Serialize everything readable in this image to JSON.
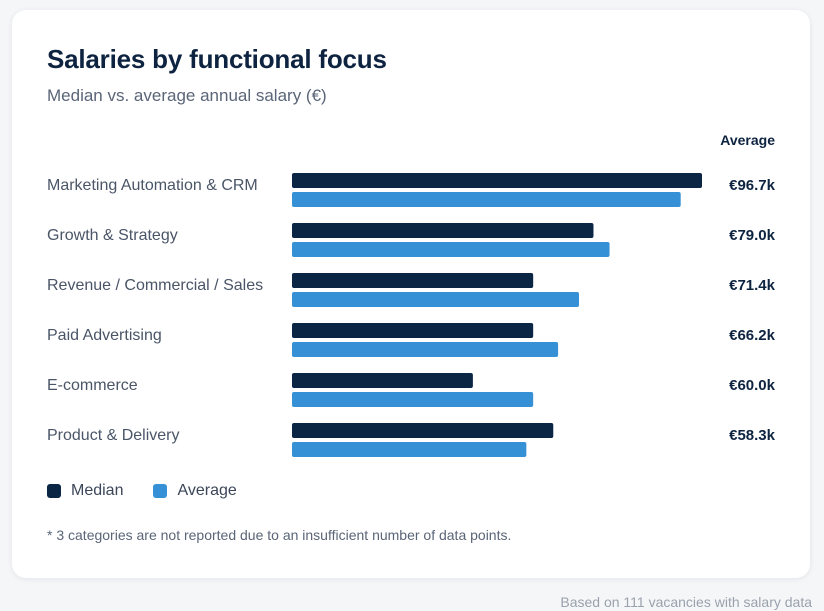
{
  "colors": {
    "median": "#0b2545",
    "average": "#3590d6"
  },
  "chart_data": {
    "type": "bar",
    "orientation": "horizontal",
    "title": "Salaries by functional focus",
    "subtitle": "Median vs. average annual salary (€)",
    "value_column_header": "Average",
    "categories": [
      "Marketing Automation & CRM",
      "Growth & Strategy",
      "Revenue / Commercial / Sales",
      "Paid Advertising",
      "E-commerce",
      "Product & Delivery"
    ],
    "series": [
      {
        "name": "Median",
        "values": [
          102,
          75,
          60,
          60,
          45,
          65
        ]
      },
      {
        "name": "Average",
        "values": [
          96.7,
          79.0,
          71.4,
          66.2,
          60.0,
          58.3
        ]
      }
    ],
    "average_labels": [
      "€96.7k",
      "€79.0k",
      "€71.4k",
      "€66.2k",
      "€60.0k",
      "€58.3k"
    ],
    "xlim": [
      0,
      102
    ],
    "grid": false,
    "legend_position": "bottom-left"
  },
  "footnote": "* 3 categories are not reported due to an insufficient number of data points.",
  "source": "Based on 111 vacancies with salary data"
}
